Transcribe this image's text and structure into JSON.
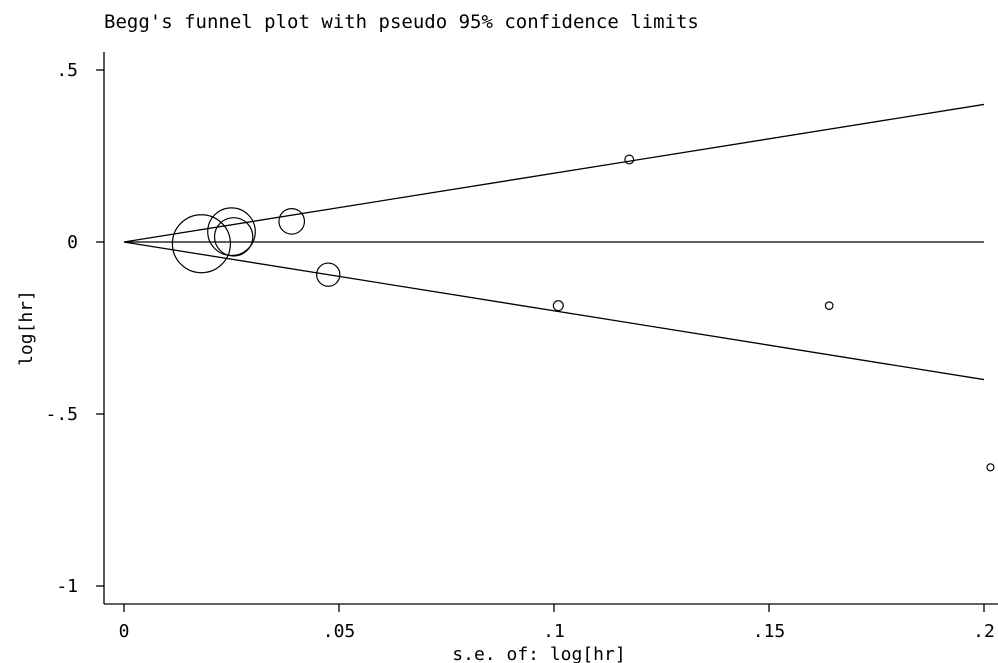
{
  "chart_data": {
    "type": "scatter",
    "title": "Begg's funnel plot with pseudo 95% confidence limits",
    "xlabel": "s.e. of: log[hr]",
    "ylabel": "log[hr]",
    "xlim": [
      0,
      0.2
    ],
    "ylim": [
      -1,
      0.5
    ],
    "xticks": [
      0,
      0.05,
      0.1,
      0.15,
      0.2
    ],
    "xtick_labels": [
      "0",
      ".05",
      ".1",
      ".15",
      ".2"
    ],
    "yticks": [
      -1,
      -0.5,
      0,
      0.5
    ],
    "ytick_labels": [
      "-1",
      "-.5",
      "0",
      ".5"
    ],
    "grid": false,
    "pooled_estimate": 0,
    "confidence_limits": {
      "upper": [
        [
          0,
          0
        ],
        [
          0.2,
          0.3999
        ]
      ],
      "lower": [
        [
          0,
          0
        ],
        [
          0.2,
          -0.3999
        ]
      ]
    },
    "points": [
      {
        "x": 0.018,
        "y": -0.005,
        "size": 1.0
      },
      {
        "x": 0.025,
        "y": 0.03,
        "size": 0.82
      },
      {
        "x": 0.0255,
        "y": 0.015,
        "size": 0.66
      },
      {
        "x": 0.039,
        "y": 0.06,
        "size": 0.44
      },
      {
        "x": 0.0475,
        "y": -0.095,
        "size": 0.4
      },
      {
        "x": 0.101,
        "y": -0.185,
        "size": 0.17
      },
      {
        "x": 0.1175,
        "y": 0.24,
        "size": 0.15
      },
      {
        "x": 0.164,
        "y": -0.185,
        "size": 0.13
      },
      {
        "x": 0.2015,
        "y": -0.655,
        "size": 0.11
      }
    ],
    "colors": {
      "line": "#000000",
      "background": "#ffffff"
    }
  }
}
